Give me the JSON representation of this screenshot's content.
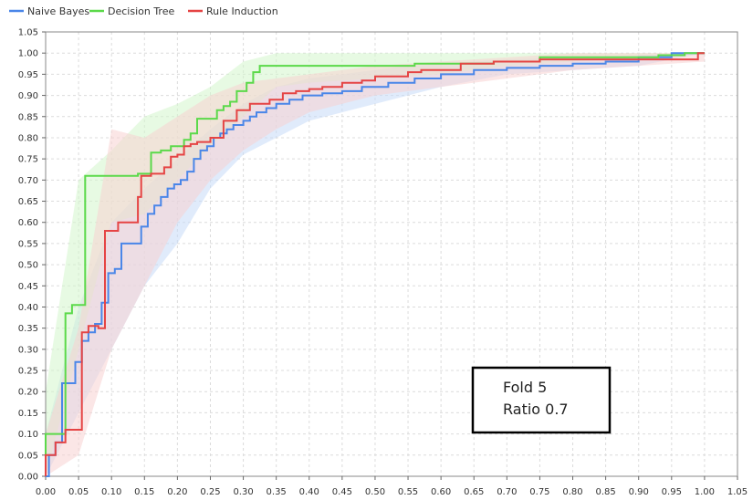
{
  "chart_data": {
    "type": "line",
    "title": "",
    "xlabel": "",
    "ylabel": "",
    "xlim": [
      0,
      1.05
    ],
    "ylim": [
      0,
      1.05
    ],
    "xticks": [
      0.0,
      0.05,
      0.1,
      0.15,
      0.2,
      0.25,
      0.3,
      0.35,
      0.4,
      0.45,
      0.5,
      0.55,
      0.6,
      0.65,
      0.7,
      0.75,
      0.8,
      0.85,
      0.9,
      0.95,
      1.0,
      1.05
    ],
    "yticks": [
      0.0,
      0.05,
      0.1,
      0.15,
      0.2,
      0.25,
      0.3,
      0.35,
      0.4,
      0.45,
      0.5,
      0.55,
      0.6,
      0.65,
      0.7,
      0.75,
      0.8,
      0.85,
      0.9,
      0.95,
      1.0,
      1.05
    ],
    "grid": true,
    "legend_position": "top-left",
    "annotation": {
      "lines": [
        "Fold 5",
        "Ratio 0.7"
      ]
    },
    "series": [
      {
        "name": "Naive Bayes",
        "color": "#4a86e8",
        "band_color": "#c6daf7",
        "x": [
          0.0,
          0.005,
          0.005,
          0.015,
          0.015,
          0.025,
          0.025,
          0.035,
          0.035,
          0.045,
          0.045,
          0.055,
          0.055,
          0.065,
          0.065,
          0.075,
          0.075,
          0.085,
          0.085,
          0.095,
          0.095,
          0.105,
          0.105,
          0.115,
          0.115,
          0.125,
          0.125,
          0.135,
          0.135,
          0.145,
          0.145,
          0.155,
          0.155,
          0.165,
          0.165,
          0.175,
          0.175,
          0.185,
          0.185,
          0.195,
          0.195,
          0.205,
          0.205,
          0.215,
          0.215,
          0.225,
          0.225,
          0.235,
          0.235,
          0.245,
          0.245,
          0.255,
          0.255,
          0.265,
          0.265,
          0.275,
          0.275,
          0.285,
          0.285,
          0.3,
          0.3,
          0.31,
          0.31,
          0.32,
          0.32,
          0.335,
          0.335,
          0.35,
          0.35,
          0.37,
          0.37,
          0.39,
          0.39,
          0.42,
          0.42,
          0.45,
          0.45,
          0.48,
          0.48,
          0.52,
          0.52,
          0.56,
          0.56,
          0.6,
          0.6,
          0.65,
          0.65,
          0.7,
          0.7,
          0.75,
          0.75,
          0.8,
          0.8,
          0.85,
          0.85,
          0.9,
          0.9,
          0.95,
          0.95,
          0.98,
          0.98,
          1.0
        ],
        "y": [
          0.0,
          0.0,
          0.05,
          0.05,
          0.08,
          0.08,
          0.22,
          0.22,
          0.22,
          0.22,
          0.27,
          0.27,
          0.32,
          0.32,
          0.34,
          0.34,
          0.36,
          0.36,
          0.41,
          0.41,
          0.48,
          0.48,
          0.49,
          0.49,
          0.55,
          0.55,
          0.55,
          0.55,
          0.55,
          0.55,
          0.59,
          0.59,
          0.62,
          0.62,
          0.64,
          0.64,
          0.66,
          0.66,
          0.68,
          0.68,
          0.69,
          0.69,
          0.7,
          0.7,
          0.72,
          0.72,
          0.75,
          0.75,
          0.77,
          0.77,
          0.78,
          0.78,
          0.8,
          0.8,
          0.81,
          0.81,
          0.82,
          0.82,
          0.83,
          0.83,
          0.84,
          0.84,
          0.85,
          0.85,
          0.86,
          0.86,
          0.87,
          0.87,
          0.88,
          0.88,
          0.89,
          0.89,
          0.9,
          0.9,
          0.905,
          0.905,
          0.91,
          0.91,
          0.92,
          0.92,
          0.93,
          0.93,
          0.94,
          0.94,
          0.95,
          0.95,
          0.96,
          0.96,
          0.965,
          0.965,
          0.97,
          0.97,
          0.975,
          0.975,
          0.98,
          0.98,
          0.99,
          0.99,
          1.0,
          1.0,
          1.0,
          1.0
        ],
        "band_x": [
          0.0,
          0.05,
          0.1,
          0.15,
          0.2,
          0.25,
          0.3,
          0.35,
          0.4,
          0.45,
          0.5,
          0.55,
          0.6,
          0.7,
          0.8,
          0.9,
          1.0
        ],
        "band_lo": [
          0.0,
          0.15,
          0.3,
          0.45,
          0.55,
          0.68,
          0.76,
          0.8,
          0.84,
          0.86,
          0.88,
          0.9,
          0.92,
          0.95,
          0.96,
          0.97,
          1.0
        ],
        "band_hi": [
          0.1,
          0.4,
          0.6,
          0.68,
          0.75,
          0.82,
          0.88,
          0.92,
          0.94,
          0.95,
          0.96,
          0.97,
          0.975,
          0.985,
          0.99,
          0.995,
          1.0
        ]
      },
      {
        "name": "Decision Tree",
        "color": "#5bd94a",
        "band_color": "#d4f5cc",
        "x": [
          0.0,
          0.0,
          0.03,
          0.03,
          0.04,
          0.04,
          0.06,
          0.06,
          0.14,
          0.14,
          0.16,
          0.16,
          0.175,
          0.175,
          0.19,
          0.19,
          0.21,
          0.21,
          0.22,
          0.22,
          0.23,
          0.23,
          0.26,
          0.26,
          0.27,
          0.27,
          0.28,
          0.28,
          0.29,
          0.29,
          0.305,
          0.305,
          0.315,
          0.315,
          0.325,
          0.325,
          0.34,
          0.34,
          0.56,
          0.56,
          0.68,
          0.68,
          0.75,
          0.75,
          0.93,
          0.93,
          0.97,
          0.97,
          1.0
        ],
        "y": [
          0.0,
          0.1,
          0.1,
          0.385,
          0.385,
          0.405,
          0.405,
          0.71,
          0.71,
          0.715,
          0.715,
          0.765,
          0.765,
          0.77,
          0.77,
          0.78,
          0.78,
          0.795,
          0.795,
          0.81,
          0.81,
          0.845,
          0.845,
          0.865,
          0.865,
          0.875,
          0.875,
          0.885,
          0.885,
          0.91,
          0.91,
          0.93,
          0.93,
          0.955,
          0.955,
          0.97,
          0.97,
          0.97,
          0.97,
          0.975,
          0.975,
          0.98,
          0.98,
          0.99,
          0.99,
          0.995,
          0.995,
          1.0,
          1.0
        ],
        "band_x": [
          0.0,
          0.05,
          0.1,
          0.15,
          0.2,
          0.25,
          0.3,
          0.35,
          0.4,
          0.5,
          0.6,
          0.7,
          0.8,
          0.9,
          1.0
        ],
        "band_lo": [
          0.0,
          0.3,
          0.6,
          0.62,
          0.7,
          0.78,
          0.85,
          0.92,
          0.93,
          0.94,
          0.95,
          0.97,
          0.98,
          0.99,
          1.0
        ],
        "band_hi": [
          0.2,
          0.7,
          0.77,
          0.85,
          0.88,
          0.92,
          0.98,
          1.0,
          1.0,
          1.0,
          1.0,
          1.0,
          1.0,
          1.0,
          1.0
        ]
      },
      {
        "name": "Rule Induction",
        "color": "#e54444",
        "band_color": "#f8d2d2",
        "x": [
          0.0,
          0.0,
          0.015,
          0.015,
          0.03,
          0.03,
          0.055,
          0.055,
          0.065,
          0.065,
          0.08,
          0.08,
          0.09,
          0.09,
          0.11,
          0.11,
          0.14,
          0.14,
          0.145,
          0.145,
          0.16,
          0.16,
          0.18,
          0.18,
          0.19,
          0.19,
          0.2,
          0.2,
          0.21,
          0.21,
          0.22,
          0.22,
          0.23,
          0.23,
          0.25,
          0.25,
          0.27,
          0.27,
          0.29,
          0.29,
          0.31,
          0.31,
          0.34,
          0.34,
          0.36,
          0.36,
          0.38,
          0.38,
          0.4,
          0.4,
          0.42,
          0.42,
          0.45,
          0.45,
          0.48,
          0.48,
          0.5,
          0.5,
          0.55,
          0.55,
          0.57,
          0.57,
          0.63,
          0.63,
          0.68,
          0.68,
          0.75,
          0.75,
          0.8,
          0.8,
          0.99,
          0.99,
          1.0
        ],
        "y": [
          0.0,
          0.05,
          0.05,
          0.08,
          0.08,
          0.11,
          0.11,
          0.34,
          0.34,
          0.355,
          0.355,
          0.35,
          0.35,
          0.58,
          0.58,
          0.6,
          0.6,
          0.66,
          0.66,
          0.71,
          0.71,
          0.715,
          0.715,
          0.73,
          0.73,
          0.755,
          0.755,
          0.76,
          0.76,
          0.78,
          0.78,
          0.785,
          0.785,
          0.79,
          0.79,
          0.8,
          0.8,
          0.84,
          0.84,
          0.865,
          0.865,
          0.88,
          0.88,
          0.89,
          0.89,
          0.905,
          0.905,
          0.91,
          0.91,
          0.915,
          0.915,
          0.92,
          0.92,
          0.93,
          0.93,
          0.935,
          0.935,
          0.945,
          0.945,
          0.955,
          0.955,
          0.96,
          0.96,
          0.975,
          0.975,
          0.98,
          0.98,
          0.985,
          0.985,
          0.985,
          0.985,
          1.0,
          1.0
        ],
        "band_x": [
          0.0,
          0.05,
          0.1,
          0.15,
          0.2,
          0.25,
          0.3,
          0.35,
          0.4,
          0.5,
          0.6,
          0.7,
          0.8,
          0.9,
          1.0
        ],
        "band_lo": [
          0.0,
          0.05,
          0.3,
          0.45,
          0.6,
          0.7,
          0.77,
          0.82,
          0.86,
          0.9,
          0.92,
          0.94,
          0.96,
          0.97,
          0.98
        ],
        "band_hi": [
          0.1,
          0.35,
          0.82,
          0.8,
          0.85,
          0.9,
          0.93,
          0.94,
          0.95,
          0.97,
          0.98,
          0.99,
          1.0,
          1.0,
          1.0
        ]
      }
    ]
  }
}
